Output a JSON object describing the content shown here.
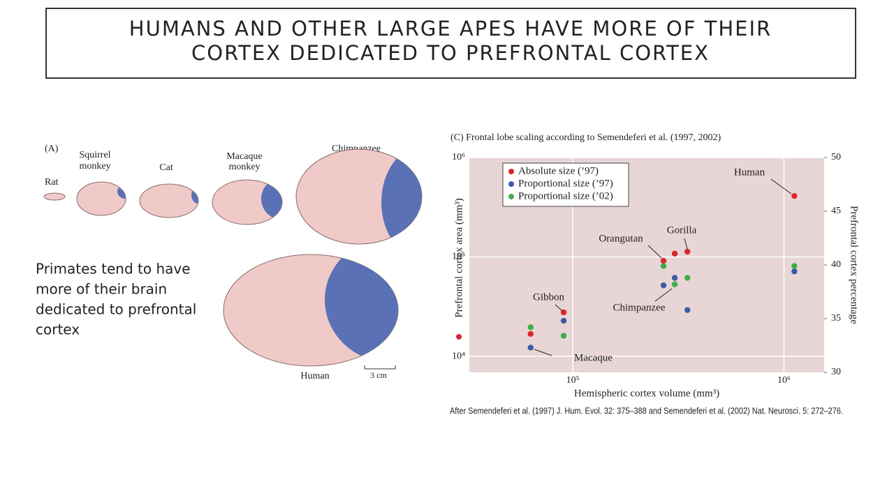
{
  "slide": {
    "title_lines": [
      "HUMANS AND OTHER LARGE APES HAVE MORE OF THEIR",
      "CORTEX DEDICATED TO PREFRONTAL CORTEX"
    ],
    "bullet_lines": [
      "Primates tend to have",
      "more of their brain",
      "dedicated to prefrontal",
      "cortex"
    ],
    "figure_a": {
      "panel": "(A)",
      "rat": "Rat",
      "squirrel": [
        "Squirrel",
        "monkey"
      ],
      "cat": "Cat",
      "macaque": [
        "Macaque",
        "monkey"
      ],
      "chimpanzee": "Chimpanzee",
      "human": "Human",
      "scale": "3 cm"
    }
  },
  "chart_data": {
    "type": "scatter",
    "title": "(C)  Frontal lobe scaling according to Semendeferi et al. (1997, 2002)",
    "xlabel": "Hemispheric cortex volume (mm³)",
    "ylabel": "Prefrontal cortex area (mm³)",
    "y2label": "Prefrontal cortex percentage",
    "source": "After Semendeferi et al. (1997) J. Hum. Evol. 32: 375–388 and Semendeferi et al. (2002) Nat. Neurosci. 5: 272–276.",
    "xlog": true,
    "ylog": true,
    "grid": true,
    "legend": "upper left",
    "xlim": [
      32400,
      1550000
    ],
    "xticks": [
      {
        "value": 100000,
        "label": "10⁵"
      },
      {
        "value": 1000000,
        "label": "10⁶"
      }
    ],
    "ylim": [
      6900,
      1000000
    ],
    "yticks": [
      {
        "value": 10000,
        "label": "10⁴"
      },
      {
        "value": 100000,
        "label": "10⁵"
      },
      {
        "value": 1000000,
        "label": "10⁶"
      }
    ],
    "y2lim": [
      30,
      50
    ],
    "y2ticks": [
      30,
      35,
      40,
      45,
      50
    ],
    "x": [
      63200,
      90600,
      269000,
      304000,
      349000,
      1120000
    ],
    "series": [
      {
        "name": "Absolute size (’97)",
        "color": "#d9262e",
        "values": [
          16800,
          27700,
          91400,
          108000,
          113000,
          411000
        ]
      },
      {
        "name": "Proportional size (’97)",
        "color": "#3a5ca8",
        "axis": "y2",
        "values": [
          32.3,
          34.8,
          38.1,
          38.8,
          35.8,
          39.4
        ]
      },
      {
        "name": "Proportional size (’02)",
        "color": "#3fae49",
        "axis": "y2",
        "values": [
          34.2,
          33.4,
          39.9,
          38.2,
          38.8,
          39.9
        ]
      }
    ],
    "annotations": [
      "Macaque",
      "Gibbon",
      "Orangutan",
      "Chimpanzee",
      "Gorilla",
      "Human"
    ]
  }
}
